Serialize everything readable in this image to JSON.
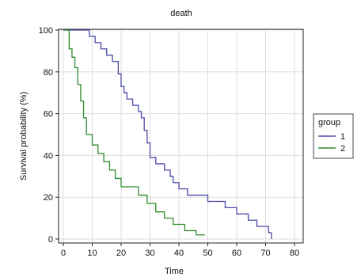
{
  "chart_data": {
    "type": "line",
    "step": true,
    "title": "death",
    "xlabel": "Time",
    "ylabel": "Survival probability (%)",
    "xlim": [
      0,
      80
    ],
    "ylim": [
      0,
      100
    ],
    "xticks": [
      "0",
      "10",
      "20",
      "30",
      "40",
      "50",
      "60",
      "70",
      "80"
    ],
    "yticks": [
      "0",
      "20",
      "40",
      "60",
      "80",
      "100"
    ],
    "grid": true,
    "legend": {
      "title": "group",
      "position": "right"
    },
    "series": [
      {
        "name": "1",
        "color": "#4a4aa8",
        "x": [
          0,
          6,
          9,
          11,
          13,
          15,
          17,
          19,
          20,
          21,
          22,
          24,
          26,
          27,
          28,
          29,
          30,
          32,
          35,
          37,
          38,
          40,
          43,
          50,
          56,
          60,
          64,
          67,
          71,
          72
        ],
        "y": [
          100,
          100,
          97,
          94,
          91,
          88,
          85,
          79,
          73,
          70,
          67,
          64,
          61,
          58,
          52,
          46,
          39,
          36,
          33,
          30,
          27,
          24,
          21,
          18,
          15,
          12,
          9,
          6,
          3,
          0
        ]
      },
      {
        "name": "2",
        "color": "#2e8b2e",
        "x": [
          0,
          2,
          3,
          4,
          5,
          6,
          7,
          8,
          10,
          12,
          14,
          16,
          18,
          20,
          26,
          29,
          32,
          35,
          38,
          42,
          46,
          49
        ],
        "y": [
          100,
          91,
          87,
          82,
          74,
          66,
          58,
          50,
          45,
          41,
          37,
          33,
          29,
          25,
          21,
          17,
          13,
          10,
          7,
          4,
          2,
          2
        ]
      }
    ]
  }
}
